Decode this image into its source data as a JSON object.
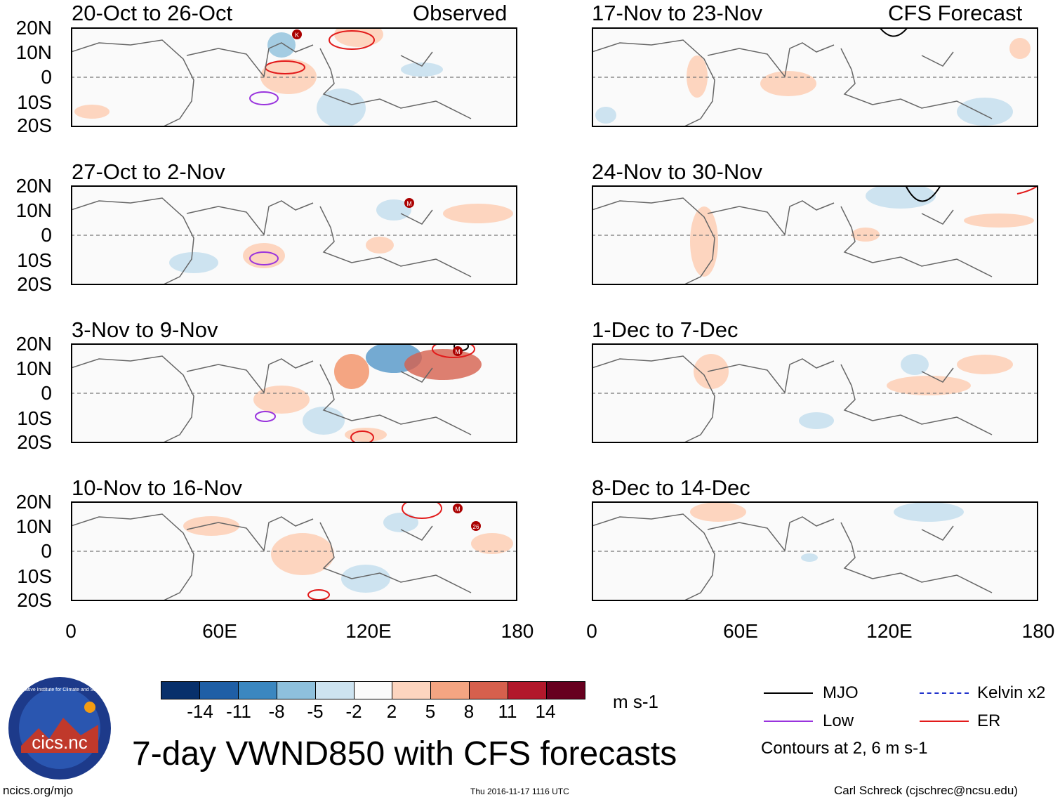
{
  "header": {
    "observed_label": "Observed",
    "forecast_label": "CFS Forecast"
  },
  "panels_observed": [
    {
      "title": "20-Oct to 26-Oct"
    },
    {
      "title": "27-Oct to 2-Nov"
    },
    {
      "title": "3-Nov to 9-Nov"
    },
    {
      "title": "10-Nov to 16-Nov"
    }
  ],
  "panels_forecast": [
    {
      "title": "17-Nov to 23-Nov"
    },
    {
      "title": "24-Nov to 30-Nov"
    },
    {
      "title": "1-Dec to 7-Dec"
    },
    {
      "title": "8-Dec to 14-Dec"
    }
  ],
  "axes": {
    "lat_labels": [
      "20N",
      "10N",
      "0",
      "10S",
      "20S"
    ],
    "lon_labels": [
      "0",
      "60E",
      "120E",
      "180"
    ],
    "lat_range": [
      -20,
      20
    ],
    "lon_range": [
      0,
      180
    ]
  },
  "storm_markers": [
    {
      "panel": "20-Oct to 26-Oct",
      "letter": "K"
    },
    {
      "panel": "27-Oct to 2-Nov",
      "letter": "M"
    },
    {
      "panel": "3-Nov to 9-Nov",
      "letter": "M"
    },
    {
      "panel": "10-Nov to 16-Nov",
      "letter": "M"
    },
    {
      "panel": "10-Nov to 16-Nov",
      "letter": "26"
    }
  ],
  "colorbar": {
    "ticks": [
      "-14",
      "-11",
      "-8",
      "-5",
      "-2",
      "2",
      "5",
      "8",
      "11",
      "14"
    ],
    "colors": [
      "#08306b",
      "#1f5fa6",
      "#3b87c0",
      "#8ec0dc",
      "#cde3f0",
      "#fbfbfb",
      "#fdd5bf",
      "#f4a582",
      "#d6604d",
      "#b2182b",
      "#67001f"
    ],
    "units": "m s-1"
  },
  "legend": {
    "items": [
      {
        "label": "MJO",
        "color": "#000000"
      },
      {
        "label": "Kelvin x2",
        "color": "#2233cc"
      },
      {
        "label": "Low",
        "color": "#9933dd"
      },
      {
        "label": "ER",
        "color": "#e21a1a"
      }
    ],
    "contour_note": "Contours at 2, 6 m s-1"
  },
  "footer": {
    "main_title": "7-day VWND850 with CFS forecasts",
    "url": "ncics.org/mjo",
    "timestamp": "Thu 2016-11-17 1116 UTC",
    "credit": "Carl Schreck (cjschrec@ncsu.edu)",
    "logo_text": "cics.nc",
    "logo_ring": "Cooperative Institute for Climate and Satellites"
  }
}
